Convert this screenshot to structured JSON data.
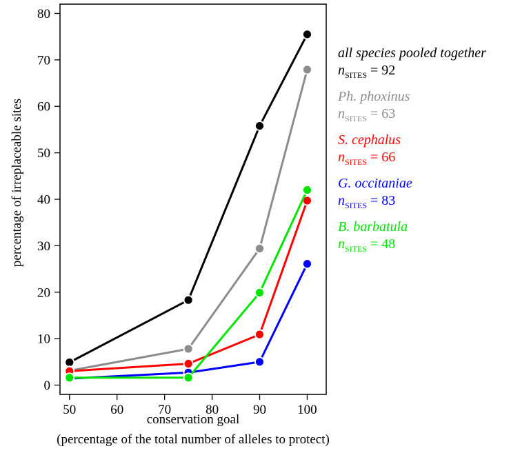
{
  "chart_data": {
    "type": "line",
    "title": "",
    "xlabel": "conservation goal",
    "xlabel_sub": "(percentage of the total number of alleles to protect)",
    "ylabel": "percentage of irreplaceable sites",
    "x": [
      50,
      75,
      90,
      100
    ],
    "xlim": [
      48,
      104
    ],
    "ylim": [
      -2,
      82
    ],
    "xticks": [
      50,
      60,
      70,
      80,
      90,
      100
    ],
    "yticks": [
      0,
      10,
      20,
      30,
      40,
      50,
      60,
      70,
      80
    ],
    "grid": false,
    "legend_placement": "right",
    "series": [
      {
        "name": "all species pooled together",
        "color": "#000000",
        "n_label": "n",
        "n_sub": "SITES",
        "n_value": "= 92",
        "values": [
          4.9,
          18.3,
          55.8,
          75.5
        ]
      },
      {
        "name": "Ph. phoxinus",
        "color": "#8c8c8c",
        "n_label": "n",
        "n_sub": "SITES",
        "n_value": "= 63",
        "values": [
          3.1,
          7.8,
          29.4,
          67.9
        ]
      },
      {
        "name": "S. cephalus",
        "color": "#ff0000",
        "n_label": "n",
        "n_sub": "SITES",
        "n_value": "= 66",
        "values": [
          3.0,
          4.6,
          10.9,
          39.7
        ]
      },
      {
        "name": "G. occitaniae",
        "color": "#0000ff",
        "n_label": "n",
        "n_sub": "SITES",
        "n_value": "= 83",
        "values": [
          1.4,
          2.7,
          5.0,
          26.1
        ]
      },
      {
        "name": "B. barbatula",
        "color": "#00e600",
        "n_label": "n",
        "n_sub": "SITES",
        "n_value": "= 48",
        "values": [
          1.6,
          1.6,
          19.9,
          42.0
        ]
      }
    ]
  }
}
